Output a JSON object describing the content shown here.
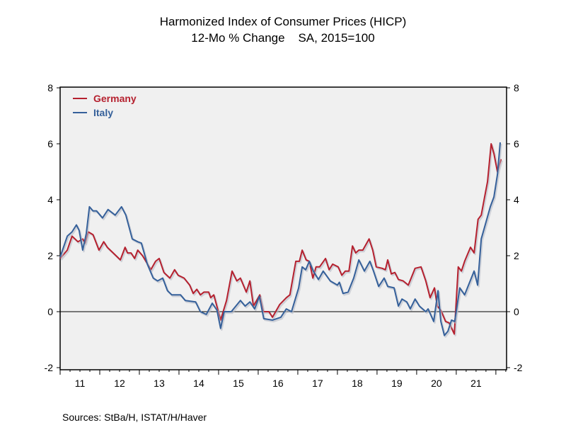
{
  "chart_data": {
    "type": "line",
    "title": "Harmonized Index of Consumer Prices (HICP)",
    "subtitle": "12-Mo % Change    SA, 2015=100",
    "source": "Sources:  StBa/H, ISTAT/H/Haver",
    "xlim": [
      2011.0,
      2022.27
    ],
    "ylim": [
      -2,
      8
    ],
    "yticks": [
      -2,
      0,
      2,
      4,
      6,
      8
    ],
    "xtick_labels": [
      "11",
      "12",
      "13",
      "14",
      "15",
      "16",
      "17",
      "18",
      "19",
      "20",
      "21"
    ],
    "zero_line": true,
    "grid": false,
    "legend_position": "top-left",
    "series": [
      {
        "name": "Germany",
        "color": "#b5202e",
        "points": [
          [
            2011.0,
            1.9
          ],
          [
            2011.18,
            2.2
          ],
          [
            2011.3,
            2.7
          ],
          [
            2011.45,
            2.5
          ],
          [
            2011.57,
            2.6
          ],
          [
            2011.63,
            2.45
          ],
          [
            2011.71,
            2.85
          ],
          [
            2011.83,
            2.75
          ],
          [
            2011.98,
            2.2
          ],
          [
            2012.1,
            2.5
          ],
          [
            2012.19,
            2.3
          ],
          [
            2012.34,
            2.1
          ],
          [
            2012.52,
            1.85
          ],
          [
            2012.64,
            2.3
          ],
          [
            2012.7,
            2.1
          ],
          [
            2012.79,
            2.1
          ],
          [
            2012.88,
            1.9
          ],
          [
            2012.96,
            2.2
          ],
          [
            2013.08,
            2.0
          ],
          [
            2013.29,
            1.5
          ],
          [
            2013.41,
            1.8
          ],
          [
            2013.5,
            1.9
          ],
          [
            2013.62,
            1.4
          ],
          [
            2013.77,
            1.2
          ],
          [
            2013.89,
            1.5
          ],
          [
            2013.98,
            1.3
          ],
          [
            2014.13,
            1.2
          ],
          [
            2014.27,
            0.95
          ],
          [
            2014.36,
            0.65
          ],
          [
            2014.45,
            0.8
          ],
          [
            2014.54,
            0.6
          ],
          [
            2014.63,
            0.7
          ],
          [
            2014.75,
            0.7
          ],
          [
            2014.8,
            0.5
          ],
          [
            2014.88,
            0.6
          ],
          [
            2015.05,
            -0.3
          ],
          [
            2015.2,
            0.4
          ],
          [
            2015.34,
            1.45
          ],
          [
            2015.46,
            1.1
          ],
          [
            2015.55,
            1.2
          ],
          [
            2015.7,
            0.7
          ],
          [
            2015.79,
            1.1
          ],
          [
            2015.88,
            0.2
          ],
          [
            2016.04,
            0.6
          ],
          [
            2016.13,
            0.0
          ],
          [
            2016.27,
            0.0
          ],
          [
            2016.36,
            -0.2
          ],
          [
            2016.54,
            0.25
          ],
          [
            2016.71,
            0.5
          ],
          [
            2016.8,
            0.6
          ],
          [
            2016.95,
            1.8
          ],
          [
            2017.04,
            1.8
          ],
          [
            2017.11,
            2.2
          ],
          [
            2017.21,
            1.85
          ],
          [
            2017.29,
            1.8
          ],
          [
            2017.38,
            1.2
          ],
          [
            2017.46,
            1.6
          ],
          [
            2017.55,
            1.6
          ],
          [
            2017.7,
            1.9
          ],
          [
            2017.79,
            1.5
          ],
          [
            2017.88,
            1.7
          ],
          [
            2018.02,
            1.6
          ],
          [
            2018.11,
            1.3
          ],
          [
            2018.2,
            1.45
          ],
          [
            2018.29,
            1.45
          ],
          [
            2018.38,
            2.35
          ],
          [
            2018.46,
            2.1
          ],
          [
            2018.54,
            2.2
          ],
          [
            2018.64,
            2.2
          ],
          [
            2018.8,
            2.6
          ],
          [
            2018.89,
            2.2
          ],
          [
            2018.98,
            1.6
          ],
          [
            2019.13,
            1.55
          ],
          [
            2019.21,
            1.5
          ],
          [
            2019.27,
            1.85
          ],
          [
            2019.36,
            1.35
          ],
          [
            2019.45,
            1.4
          ],
          [
            2019.54,
            1.15
          ],
          [
            2019.66,
            1.1
          ],
          [
            2019.79,
            0.95
          ],
          [
            2019.96,
            1.55
          ],
          [
            2020.11,
            1.6
          ],
          [
            2020.23,
            1.1
          ],
          [
            2020.34,
            0.5
          ],
          [
            2020.45,
            0.85
          ],
          [
            2020.52,
            0.2
          ],
          [
            2020.61,
            0.05
          ],
          [
            2020.73,
            -0.35
          ],
          [
            2020.82,
            -0.4
          ],
          [
            2020.95,
            -0.8
          ],
          [
            2021.05,
            1.6
          ],
          [
            2021.13,
            1.45
          ],
          [
            2021.21,
            1.8
          ],
          [
            2021.36,
            2.3
          ],
          [
            2021.45,
            2.1
          ],
          [
            2021.55,
            3.3
          ],
          [
            2021.63,
            3.45
          ],
          [
            2021.71,
            4.05
          ],
          [
            2021.79,
            4.65
          ],
          [
            2021.88,
            6.0
          ],
          [
            2021.95,
            5.65
          ],
          [
            2022.04,
            5.0
          ],
          [
            2022.13,
            5.45
          ]
        ]
      },
      {
        "name": "Italy",
        "color": "#35609a",
        "points": [
          [
            2011.0,
            1.95
          ],
          [
            2011.18,
            2.7
          ],
          [
            2011.3,
            2.85
          ],
          [
            2011.41,
            3.1
          ],
          [
            2011.48,
            2.9
          ],
          [
            2011.57,
            2.2
          ],
          [
            2011.66,
            2.8
          ],
          [
            2011.74,
            3.75
          ],
          [
            2011.83,
            3.6
          ],
          [
            2011.92,
            3.6
          ],
          [
            2012.07,
            3.35
          ],
          [
            2012.21,
            3.65
          ],
          [
            2012.39,
            3.45
          ],
          [
            2012.55,
            3.75
          ],
          [
            2012.66,
            3.45
          ],
          [
            2012.82,
            2.6
          ],
          [
            2012.96,
            2.5
          ],
          [
            2013.05,
            2.45
          ],
          [
            2013.2,
            1.7
          ],
          [
            2013.35,
            1.2
          ],
          [
            2013.46,
            1.1
          ],
          [
            2013.59,
            1.2
          ],
          [
            2013.71,
            0.75
          ],
          [
            2013.82,
            0.6
          ],
          [
            2014.04,
            0.6
          ],
          [
            2014.16,
            0.4
          ],
          [
            2014.42,
            0.35
          ],
          [
            2014.54,
            0.0
          ],
          [
            2014.69,
            -0.1
          ],
          [
            2014.84,
            0.3
          ],
          [
            2014.96,
            0.05
          ],
          [
            2015.05,
            -0.6
          ],
          [
            2015.14,
            0.0
          ],
          [
            2015.32,
            0.0
          ],
          [
            2015.55,
            0.4
          ],
          [
            2015.67,
            0.2
          ],
          [
            2015.79,
            0.35
          ],
          [
            2015.91,
            0.1
          ],
          [
            2016.03,
            0.55
          ],
          [
            2016.14,
            -0.25
          ],
          [
            2016.36,
            -0.3
          ],
          [
            2016.57,
            -0.2
          ],
          [
            2016.71,
            0.1
          ],
          [
            2016.84,
            0.0
          ],
          [
            2017.02,
            0.85
          ],
          [
            2017.11,
            1.6
          ],
          [
            2017.2,
            1.5
          ],
          [
            2017.29,
            1.8
          ],
          [
            2017.39,
            1.45
          ],
          [
            2017.52,
            1.15
          ],
          [
            2017.64,
            1.45
          ],
          [
            2017.82,
            1.1
          ],
          [
            2018.0,
            0.95
          ],
          [
            2018.05,
            1.05
          ],
          [
            2018.14,
            0.65
          ],
          [
            2018.27,
            0.7
          ],
          [
            2018.41,
            1.2
          ],
          [
            2018.54,
            1.85
          ],
          [
            2018.68,
            1.45
          ],
          [
            2018.82,
            1.8
          ],
          [
            2018.91,
            1.45
          ],
          [
            2019.04,
            0.9
          ],
          [
            2019.18,
            1.2
          ],
          [
            2019.27,
            0.9
          ],
          [
            2019.43,
            0.85
          ],
          [
            2019.54,
            0.2
          ],
          [
            2019.63,
            0.45
          ],
          [
            2019.75,
            0.35
          ],
          [
            2019.84,
            0.1
          ],
          [
            2019.96,
            0.45
          ],
          [
            2020.07,
            0.2
          ],
          [
            2020.23,
            0.0
          ],
          [
            2020.29,
            0.1
          ],
          [
            2020.43,
            -0.35
          ],
          [
            2020.54,
            0.75
          ],
          [
            2020.61,
            -0.35
          ],
          [
            2020.7,
            -0.85
          ],
          [
            2020.79,
            -0.7
          ],
          [
            2020.88,
            -0.3
          ],
          [
            2020.96,
            -0.35
          ],
          [
            2021.09,
            0.85
          ],
          [
            2021.21,
            0.6
          ],
          [
            2021.45,
            1.45
          ],
          [
            2021.54,
            0.95
          ],
          [
            2021.63,
            2.6
          ],
          [
            2021.75,
            3.2
          ],
          [
            2021.86,
            3.75
          ],
          [
            2021.95,
            4.1
          ],
          [
            2022.04,
            4.9
          ],
          [
            2022.11,
            6.05
          ]
        ]
      }
    ]
  }
}
